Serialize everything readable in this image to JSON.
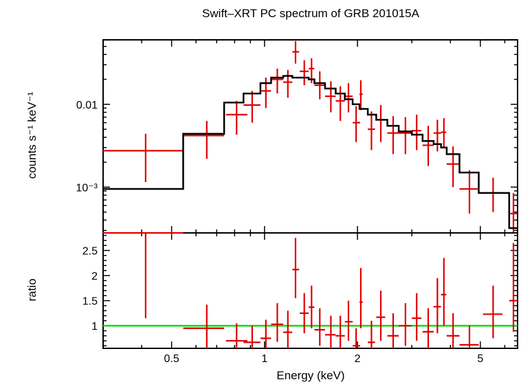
{
  "chart_data": {
    "type": "scatter",
    "title": "Swift–XRT PC spectrum of GRB 201015A",
    "xlabel": "Energy (keV)",
    "x_scale": "log",
    "xlim": [
      0.3,
      6.6
    ],
    "x_ticks": [
      0.5,
      1,
      2,
      5
    ],
    "panels": [
      {
        "id": "spectrum",
        "ylabel": "counts s⁻¹ keV⁻¹",
        "y_scale": "log",
        "ylim": [
          0.00028,
          0.06
        ],
        "y_tick_labels": [
          "0.01",
          "10⁻³"
        ],
        "y_ticks": [
          0.01,
          0.001
        ],
        "series": [
          {
            "kind": "data",
            "color": "#e00000",
            "points": [
              {
                "x": 0.412,
                "xlo": 0.3,
                "xhi": 0.545,
                "y": 0.00275,
                "ylo": 0.00115,
                "yhi": 0.0044
              },
              {
                "x": 0.65,
                "xlo": 0.545,
                "xhi": 0.74,
                "y": 0.0042,
                "ylo": 0.0022,
                "yhi": 0.0063
              },
              {
                "x": 0.812,
                "xlo": 0.75,
                "xhi": 0.88,
                "y": 0.0075,
                "ylo": 0.0043,
                "yhi": 0.011
              },
              {
                "x": 0.912,
                "xlo": 0.855,
                "xhi": 0.97,
                "y": 0.0098,
                "ylo": 0.006,
                "yhi": 0.0145
              },
              {
                "x": 1.01,
                "xlo": 0.97,
                "xhi": 1.05,
                "y": 0.0145,
                "ylo": 0.009,
                "yhi": 0.021
              },
              {
                "x": 1.1,
                "xlo": 1.05,
                "xhi": 1.15,
                "y": 0.02,
                "ylo": 0.0135,
                "yhi": 0.027
              },
              {
                "x": 1.19,
                "xlo": 1.15,
                "xhi": 1.23,
                "y": 0.0185,
                "ylo": 0.012,
                "yhi": 0.026
              },
              {
                "x": 1.26,
                "xlo": 1.23,
                "xhi": 1.295,
                "y": 0.043,
                "ylo": 0.031,
                "yhi": 0.058
              },
              {
                "x": 1.345,
                "xlo": 1.3,
                "xhi": 1.39,
                "y": 0.025,
                "ylo": 0.017,
                "yhi": 0.034
              },
              {
                "x": 1.42,
                "xlo": 1.39,
                "xhi": 1.45,
                "y": 0.027,
                "ylo": 0.018,
                "yhi": 0.036
              },
              {
                "x": 1.51,
                "xlo": 1.45,
                "xhi": 1.57,
                "y": 0.017,
                "ylo": 0.0115,
                "yhi": 0.025
              },
              {
                "x": 1.64,
                "xlo": 1.57,
                "xhi": 1.7,
                "y": 0.0125,
                "ylo": 0.008,
                "yhi": 0.019
              },
              {
                "x": 1.76,
                "xlo": 1.7,
                "xhi": 1.82,
                "y": 0.011,
                "ylo": 0.0063,
                "yhi": 0.0165
              },
              {
                "x": 1.87,
                "xlo": 1.82,
                "xhi": 1.93,
                "y": 0.0125,
                "ylo": 0.008,
                "yhi": 0.018
              },
              {
                "x": 1.98,
                "xlo": 1.93,
                "xhi": 2.04,
                "y": 0.006,
                "ylo": 0.0035,
                "yhi": 0.0095
              },
              {
                "x": 2.05,
                "xlo": 2.03,
                "xhi": 2.08,
                "y": 0.0132,
                "ylo": 0.0085,
                "yhi": 0.0195
              },
              {
                "x": 2.22,
                "xlo": 2.16,
                "xhi": 2.28,
                "y": 0.005,
                "ylo": 0.0028,
                "yhi": 0.0082
              },
              {
                "x": 2.38,
                "xlo": 2.3,
                "xhi": 2.46,
                "y": 0.0065,
                "ylo": 0.0035,
                "yhi": 0.0098
              },
              {
                "x": 2.61,
                "xlo": 2.5,
                "xhi": 2.72,
                "y": 0.0045,
                "ylo": 0.0025,
                "yhi": 0.0072
              },
              {
                "x": 2.86,
                "xlo": 2.72,
                "xhi": 3.0,
                "y": 0.0045,
                "ylo": 0.0025,
                "yhi": 0.007
              },
              {
                "x": 3.11,
                "xlo": 3.0,
                "xhi": 3.22,
                "y": 0.0048,
                "ylo": 0.0028,
                "yhi": 0.0075
              },
              {
                "x": 3.39,
                "xlo": 3.25,
                "xhi": 3.53,
                "y": 0.0032,
                "ylo": 0.0018,
                "yhi": 0.0055
              },
              {
                "x": 3.63,
                "xlo": 3.53,
                "xhi": 3.73,
                "y": 0.0045,
                "ylo": 0.0027,
                "yhi": 0.0065
              },
              {
                "x": 3.81,
                "xlo": 3.73,
                "xhi": 3.88,
                "y": 0.0046,
                "ylo": 0.003,
                "yhi": 0.0068
              },
              {
                "x": 4.08,
                "xlo": 3.89,
                "xhi": 4.28,
                "y": 0.0019,
                "ylo": 0.001,
                "yhi": 0.0031
              },
              {
                "x": 4.61,
                "xlo": 4.28,
                "xhi": 4.94,
                "y": 0.00095,
                "ylo": 0.00048,
                "yhi": 0.0016
              },
              {
                "x": 5.5,
                "xlo": 5.1,
                "xhi": 5.9,
                "y": 0.00085,
                "ylo": 0.0005,
                "yhi": 0.0013
              },
              {
                "x": 6.4,
                "xlo": 6.2,
                "xhi": 6.6,
                "y": 0.00048,
                "ylo": 0.00028,
                "yhi": 0.00085
              }
            ]
          },
          {
            "kind": "model",
            "color": "#000000",
            "steps": [
              {
                "x0": 0.3,
                "x1": 0.545,
                "y": 0.00095
              },
              {
                "x0": 0.545,
                "x1": 0.74,
                "y": 0.0044
              },
              {
                "x0": 0.74,
                "x1": 0.855,
                "y": 0.0105
              },
              {
                "x0": 0.855,
                "x1": 0.97,
                "y": 0.0135
              },
              {
                "x0": 0.97,
                "x1": 1.05,
                "y": 0.018
              },
              {
                "x0": 1.05,
                "x1": 1.15,
                "y": 0.021
              },
              {
                "x0": 1.15,
                "x1": 1.23,
                "y": 0.022
              },
              {
                "x0": 1.23,
                "x1": 1.3,
                "y": 0.021
              },
              {
                "x0": 1.3,
                "x1": 1.39,
                "y": 0.021
              },
              {
                "x0": 1.39,
                "x1": 1.45,
                "y": 0.02
              },
              {
                "x0": 1.45,
                "x1": 1.57,
                "y": 0.018
              },
              {
                "x0": 1.57,
                "x1": 1.7,
                "y": 0.0155
              },
              {
                "x0": 1.7,
                "x1": 1.82,
                "y": 0.0135
              },
              {
                "x0": 1.82,
                "x1": 1.93,
                "y": 0.0115
              },
              {
                "x0": 1.93,
                "x1": 2.03,
                "y": 0.01
              },
              {
                "x0": 2.03,
                "x1": 2.16,
                "y": 0.0088
              },
              {
                "x0": 2.16,
                "x1": 2.3,
                "y": 0.0075
              },
              {
                "x0": 2.3,
                "x1": 2.5,
                "y": 0.0065
              },
              {
                "x0": 2.5,
                "x1": 2.72,
                "y": 0.0055
              },
              {
                "x0": 2.72,
                "x1": 3.0,
                "y": 0.0047
              },
              {
                "x0": 3.0,
                "x1": 3.25,
                "y": 0.0043
              },
              {
                "x0": 3.25,
                "x1": 3.53,
                "y": 0.0036
              },
              {
                "x0": 3.53,
                "x1": 3.73,
                "y": 0.0033
              },
              {
                "x0": 3.73,
                "x1": 3.89,
                "y": 0.003
              },
              {
                "x0": 3.89,
                "x1": 4.28,
                "y": 0.0025
              },
              {
                "x0": 4.28,
                "x1": 4.94,
                "y": 0.0015
              },
              {
                "x0": 4.94,
                "x1": 6.2,
                "y": 0.00085
              },
              {
                "x0": 6.2,
                "x1": 6.6,
                "y": 0.00032
              }
            ]
          }
        ]
      },
      {
        "id": "ratio",
        "ylabel": "ratio",
        "y_scale": "linear",
        "ylim": [
          0.55,
          2.85
        ],
        "y_ticks": [
          1,
          1.5,
          2,
          2.5
        ],
        "y_tick_labels": [
          "1",
          "1.5",
          "2",
          "2.5"
        ],
        "reference_line": {
          "y": 1,
          "color": "#00e000"
        },
        "series": [
          {
            "kind": "data",
            "color": "#e00000",
            "points": [
              {
                "x": 0.412,
                "xlo": 0.3,
                "xhi": 0.545,
                "y": 2.85,
                "ylo": 1.15,
                "yhi": 2.85
              },
              {
                "x": 0.65,
                "xlo": 0.545,
                "xhi": 0.74,
                "y": 0.95,
                "ylo": 0.5,
                "yhi": 1.42
              },
              {
                "x": 0.812,
                "xlo": 0.75,
                "xhi": 0.88,
                "y": 0.7,
                "ylo": 0.55,
                "yhi": 1.05
              },
              {
                "x": 0.912,
                "xlo": 0.855,
                "xhi": 0.97,
                "y": 0.67,
                "ylo": 0.55,
                "yhi": 1.0
              },
              {
                "x": 1.01,
                "xlo": 0.97,
                "xhi": 1.05,
                "y": 0.75,
                "ylo": 0.55,
                "yhi": 1.12
              },
              {
                "x": 1.1,
                "xlo": 1.05,
                "xhi": 1.15,
                "y": 1.03,
                "ylo": 0.68,
                "yhi": 1.45
              },
              {
                "x": 1.19,
                "xlo": 1.15,
                "xhi": 1.23,
                "y": 0.87,
                "ylo": 0.55,
                "yhi": 1.3
              },
              {
                "x": 1.26,
                "xlo": 1.23,
                "xhi": 1.295,
                "y": 2.12,
                "ylo": 1.55,
                "yhi": 2.75
              },
              {
                "x": 1.345,
                "xlo": 1.3,
                "xhi": 1.39,
                "y": 1.25,
                "ylo": 0.85,
                "yhi": 1.65
              },
              {
                "x": 1.42,
                "xlo": 1.39,
                "xhi": 1.45,
                "y": 1.37,
                "ylo": 0.95,
                "yhi": 1.8
              },
              {
                "x": 1.51,
                "xlo": 1.45,
                "xhi": 1.57,
                "y": 0.92,
                "ylo": 0.6,
                "yhi": 1.35
              },
              {
                "x": 1.64,
                "xlo": 1.57,
                "xhi": 1.7,
                "y": 0.82,
                "ylo": 0.55,
                "yhi": 1.2
              },
              {
                "x": 1.76,
                "xlo": 1.7,
                "xhi": 1.82,
                "y": 0.8,
                "ylo": 0.55,
                "yhi": 1.2
              },
              {
                "x": 1.87,
                "xlo": 1.82,
                "xhi": 1.93,
                "y": 1.08,
                "ylo": 0.7,
                "yhi": 1.5
              },
              {
                "x": 1.98,
                "xlo": 1.93,
                "xhi": 2.04,
                "y": 0.6,
                "ylo": 0.55,
                "yhi": 0.95
              },
              {
                "x": 2.05,
                "xlo": 2.03,
                "xhi": 2.08,
                "y": 1.47,
                "ylo": 0.95,
                "yhi": 2.15
              },
              {
                "x": 2.22,
                "xlo": 2.16,
                "xhi": 2.28,
                "y": 0.67,
                "ylo": 0.55,
                "yhi": 1.1
              },
              {
                "x": 2.38,
                "xlo": 2.3,
                "xhi": 2.46,
                "y": 1.17,
                "ylo": 0.7,
                "yhi": 1.7
              },
              {
                "x": 2.61,
                "xlo": 2.5,
                "xhi": 2.72,
                "y": 0.8,
                "ylo": 0.55,
                "yhi": 1.25
              },
              {
                "x": 2.86,
                "xlo": 2.72,
                "xhi": 3.0,
                "y": 1.0,
                "ylo": 0.6,
                "yhi": 1.45
              },
              {
                "x": 3.11,
                "xlo": 3.0,
                "xhi": 3.22,
                "y": 1.15,
                "ylo": 0.7,
                "yhi": 1.65
              },
              {
                "x": 3.39,
                "xlo": 3.25,
                "xhi": 3.53,
                "y": 0.88,
                "ylo": 0.55,
                "yhi": 1.35
              },
              {
                "x": 3.63,
                "xlo": 3.53,
                "xhi": 3.73,
                "y": 1.38,
                "ylo": 0.85,
                "yhi": 1.95
              },
              {
                "x": 3.81,
                "xlo": 3.73,
                "xhi": 3.88,
                "y": 1.62,
                "ylo": 1.0,
                "yhi": 2.35
              },
              {
                "x": 4.08,
                "xlo": 3.89,
                "xhi": 4.28,
                "y": 0.8,
                "ylo": 0.55,
                "yhi": 1.25
              },
              {
                "x": 4.61,
                "xlo": 4.28,
                "xhi": 4.94,
                "y": 0.62,
                "ylo": 0.55,
                "yhi": 1.0
              },
              {
                "x": 5.5,
                "xlo": 5.1,
                "xhi": 5.9,
                "y": 1.23,
                "ylo": 0.75,
                "yhi": 1.8
              },
              {
                "x": 6.4,
                "xlo": 6.2,
                "xhi": 6.6,
                "y": 1.5,
                "ylo": 0.88,
                "yhi": 2.65
              }
            ]
          }
        ]
      }
    ]
  }
}
